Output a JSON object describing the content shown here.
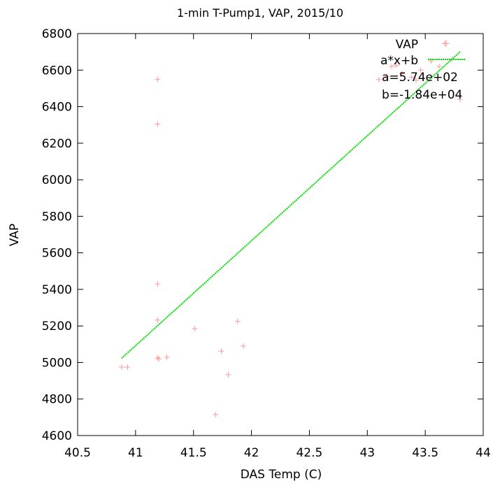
{
  "chart_data": {
    "type": "scatter",
    "title": "1-min T-Pump1, VAP, 2015/10",
    "xlabel": "DAS Temp (C)",
    "ylabel": "VAP",
    "xlim": [
      40.5,
      44
    ],
    "ylim": [
      4600,
      6800
    ],
    "xticks": [
      "40.5",
      "41",
      "41.5",
      "42",
      "42.5",
      "43",
      "43.5",
      "44"
    ],
    "yticks": [
      "4600",
      "4800",
      "5000",
      "5200",
      "5400",
      "5600",
      "5800",
      "6000",
      "6200",
      "6400",
      "6600",
      "6800"
    ],
    "grid": false,
    "legend_position": "top-right",
    "series": [
      {
        "name": "VAP",
        "kind": "points",
        "color": "#ff9999",
        "marker": "plus",
        "points": [
          [
            40.88,
            4975
          ],
          [
            40.93,
            4975
          ],
          [
            41.19,
            6550
          ],
          [
            41.19,
            6305
          ],
          [
            41.19,
            5430
          ],
          [
            41.19,
            5232
          ],
          [
            41.19,
            5025
          ],
          [
            41.2,
            5020
          ],
          [
            41.27,
            5028
          ],
          [
            41.51,
            5185
          ],
          [
            41.69,
            4715
          ],
          [
            41.74,
            5062
          ],
          [
            41.8,
            4933
          ],
          [
            41.88,
            5225
          ],
          [
            41.93,
            5090
          ],
          [
            43.1,
            6548
          ],
          [
            43.17,
            6565
          ],
          [
            43.21,
            6620
          ],
          [
            43.25,
            6625
          ],
          [
            43.3,
            6580
          ],
          [
            43.38,
            6560
          ],
          [
            43.42,
            6545
          ],
          [
            43.46,
            6600
          ],
          [
            43.55,
            6650
          ],
          [
            43.62,
            6620
          ],
          [
            43.67,
            6745
          ],
          [
            43.73,
            6660
          ],
          [
            43.8,
            6440
          ]
        ]
      },
      {
        "name": "a*x+b",
        "kind": "fit-line",
        "color": "#00dd00",
        "x": [
          40.88,
          43.8
        ],
        "y": [
          5023,
          6700
        ]
      }
    ],
    "annotations": [
      "a=5.74e+02",
      "b=-1.84e+04"
    ]
  }
}
